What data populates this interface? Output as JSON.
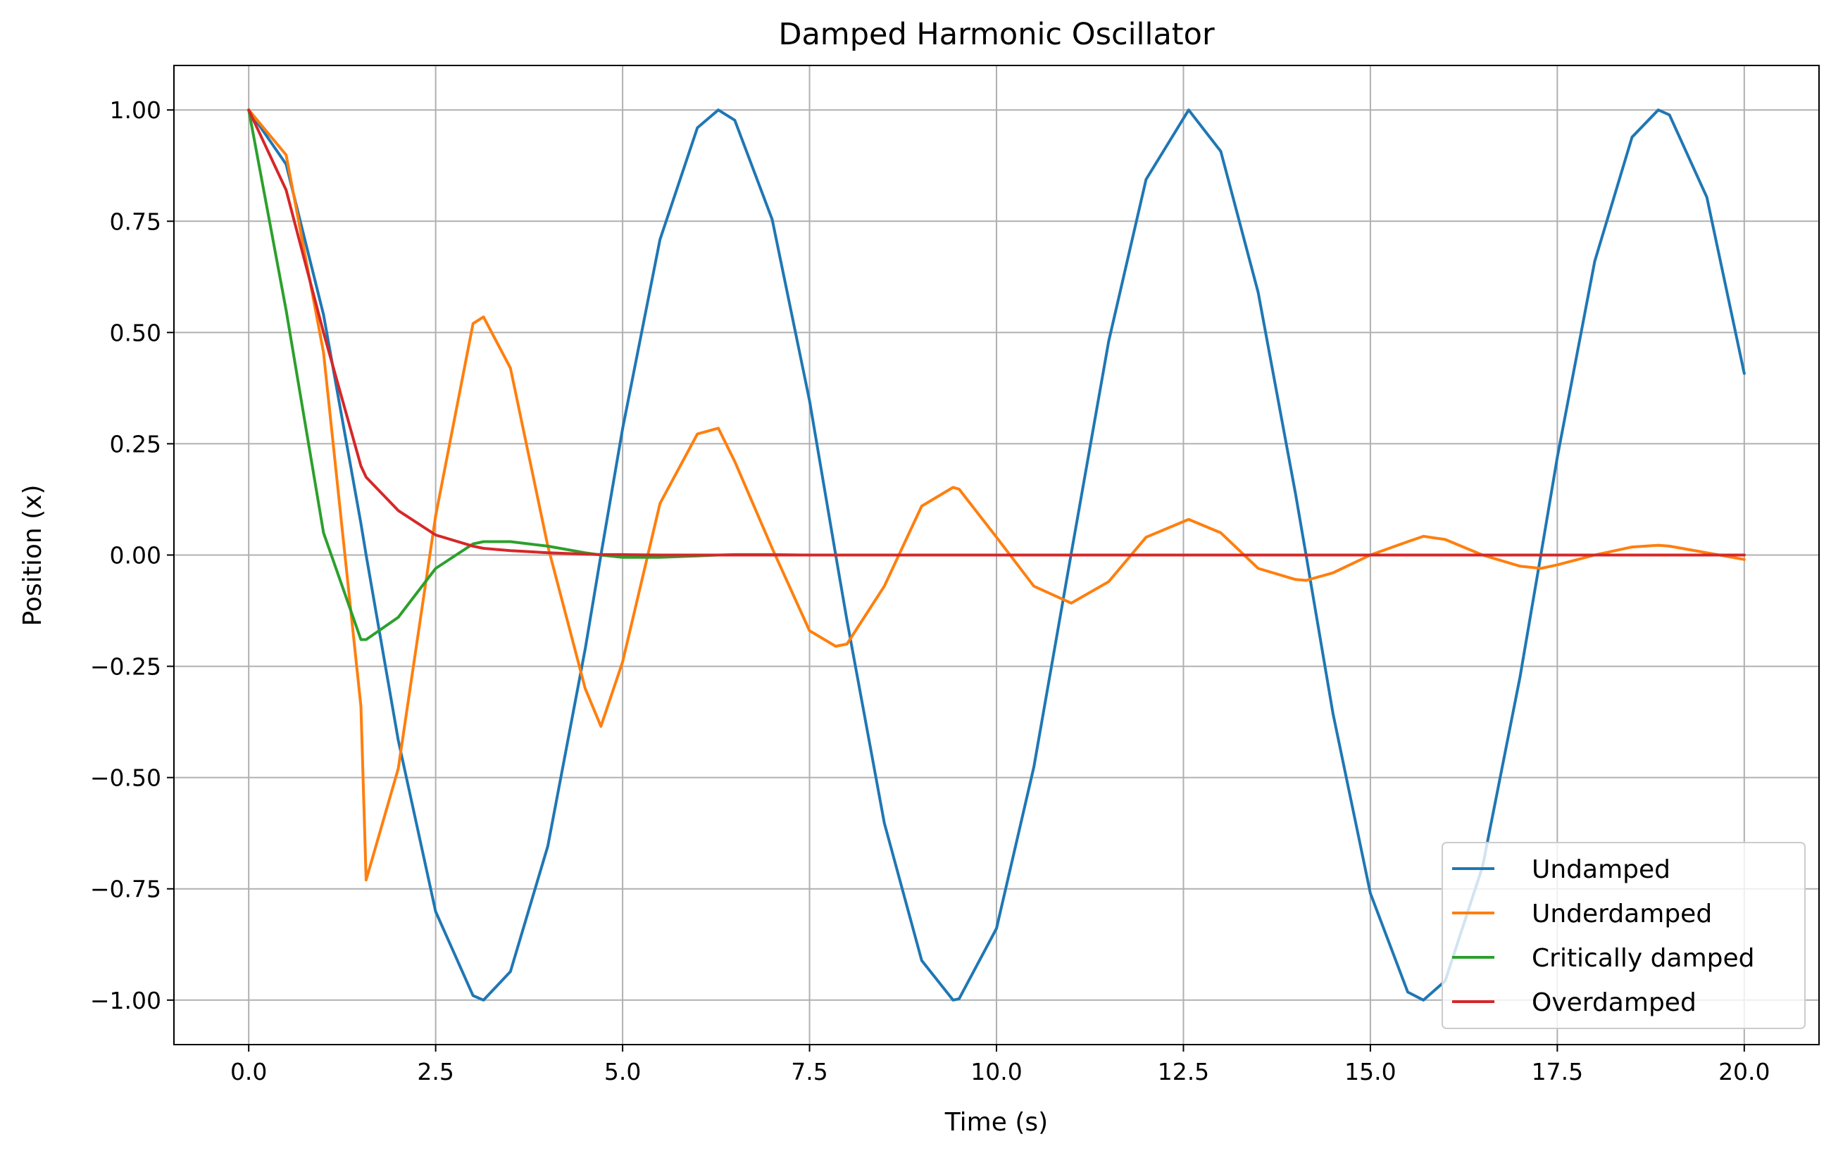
{
  "chart_data": {
    "type": "line",
    "title": "Damped Harmonic Oscillator",
    "xlabel": "Time (s)",
    "ylabel": "Position (x)",
    "xlim": [
      -1.0,
      21.0
    ],
    "ylim": [
      -1.1,
      1.1
    ],
    "x_ticks": [
      "0.0",
      "2.5",
      "5.0",
      "7.5",
      "10.0",
      "12.5",
      "15.0",
      "17.5",
      "20.0"
    ],
    "y_ticks": [
      "1.00",
      "0.75",
      "0.50",
      "0.25",
      "0.00",
      "−0.25",
      "−0.50",
      "−0.75",
      "−1.00"
    ],
    "grid": true,
    "legend_position": "lower-right",
    "x": [
      0,
      0.5,
      1.0,
      1.5,
      1.57,
      2.0,
      2.5,
      3.0,
      3.14,
      3.5,
      4.0,
      4.5,
      4.71,
      5.0,
      5.5,
      6.0,
      6.28,
      6.5,
      7.0,
      7.5,
      7.85,
      8.0,
      8.5,
      9.0,
      9.42,
      9.5,
      10.0,
      10.5,
      11.0,
      11.5,
      12.0,
      12.57,
      13.0,
      13.5,
      14.0,
      14.14,
      14.5,
      15.0,
      15.5,
      15.71,
      16.0,
      16.5,
      17.0,
      17.28,
      17.5,
      18.0,
      18.5,
      18.85,
      19.0,
      19.5,
      20.0
    ],
    "series": [
      {
        "name": "Undamped",
        "color": "#1f77b4",
        "values": [
          1.0,
          0.878,
          0.54,
          0.071,
          0.0,
          -0.416,
          -0.801,
          -0.99,
          -1.0,
          -0.936,
          -0.654,
          -0.211,
          0.0,
          0.284,
          0.709,
          0.96,
          1.0,
          0.977,
          0.754,
          0.347,
          0.0,
          -0.146,
          -0.602,
          -0.911,
          -1.0,
          -0.997,
          -0.839,
          -0.476,
          0.004,
          0.48,
          0.844,
          1.0,
          0.907,
          0.59,
          0.137,
          0.0,
          -0.356,
          -0.76,
          -0.982,
          -1.0,
          -0.957,
          -0.7,
          -0.275,
          0.0,
          0.22,
          0.66,
          0.939,
          1.0,
          0.989,
          0.804,
          0.408
        ]
      },
      {
        "name": "Underdamped",
        "color": "#ff7f0e",
        "values": [
          1.0,
          0.899,
          0.455,
          -0.34,
          -0.73,
          -0.48,
          0.088,
          0.52,
          0.535,
          0.42,
          0.02,
          -0.3,
          -0.385,
          -0.24,
          0.116,
          0.272,
          0.285,
          0.21,
          0.015,
          -0.17,
          -0.205,
          -0.2,
          -0.07,
          0.11,
          0.152,
          0.148,
          0.04,
          -0.07,
          -0.108,
          -0.06,
          0.04,
          0.08,
          0.05,
          -0.03,
          -0.055,
          -0.057,
          -0.04,
          0.0,
          0.03,
          0.042,
          0.035,
          0.0,
          -0.025,
          -0.03,
          -0.022,
          0.0,
          0.018,
          0.022,
          0.02,
          0.005,
          -0.01
        ]
      },
      {
        "name": "Critically damped",
        "color": "#2ca02c",
        "values": [
          1.0,
          0.55,
          0.05,
          -0.19,
          -0.19,
          -0.14,
          -0.03,
          0.025,
          0.03,
          0.03,
          0.02,
          0.005,
          0.0,
          -0.005,
          -0.005,
          -0.002,
          0.0,
          0.001,
          0.001,
          0.0,
          0.0,
          0.0,
          0.0,
          0.0,
          0.0,
          0.0,
          0.0,
          0.0,
          0.0,
          0.0,
          0.0,
          0.0,
          0.0,
          0.0,
          0.0,
          0.0,
          0.0,
          0.0,
          0.0,
          0.0,
          0.0,
          0.0,
          0.0,
          0.0,
          0.0,
          0.0,
          0.0,
          0.0,
          0.0,
          0.0,
          0.0
        ]
      },
      {
        "name": "Overdamped",
        "color": "#d62728",
        "values": [
          1.0,
          0.82,
          0.5,
          0.2,
          0.175,
          0.1,
          0.045,
          0.02,
          0.015,
          0.01,
          0.005,
          0.002,
          0.001,
          0.001,
          0.0,
          0.0,
          0.0,
          0.0,
          0.0,
          0.0,
          0.0,
          0.0,
          0.0,
          0.0,
          0.0,
          0.0,
          0.0,
          0.0,
          0.0,
          0.0,
          0.0,
          0.0,
          0.0,
          0.0,
          0.0,
          0.0,
          0.0,
          0.0,
          0.0,
          0.0,
          0.0,
          0.0,
          0.0,
          0.0,
          0.0,
          0.0,
          0.0,
          0.0,
          0.0,
          0.0,
          0.0
        ]
      }
    ]
  }
}
